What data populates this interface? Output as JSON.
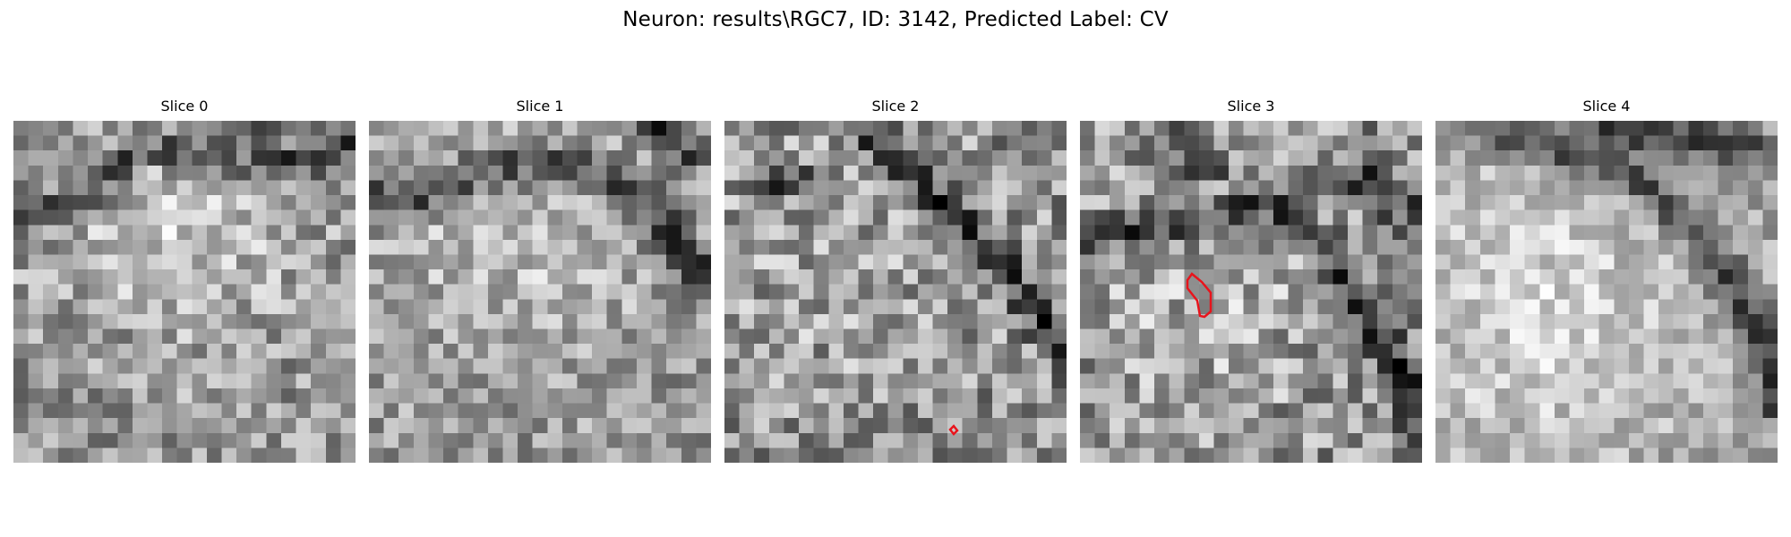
{
  "figure": {
    "suptitle": "Neuron: results\\RGC7, ID: 3142, Predicted Label: CV"
  },
  "colors": {
    "contour": "#e8141c",
    "background": "#ffffff",
    "colormap": "gray"
  },
  "panels": [
    {
      "title": "Slice 0",
      "image": "grayscale EM patch, 23x23 px grid; dark membrane arcs across upper portion over bright cell body",
      "contour": false
    },
    {
      "title": "Slice 1",
      "image": "grayscale EM patch, 23x23 px grid; dark curved membrane band from left to upper-right",
      "contour": false
    },
    {
      "title": "Slice 2",
      "image": "grayscale EM patch, 23x23 px grid; diagonal dark membrane from top center to right; small red contour",
      "contour": true
    },
    {
      "title": "Slice 3",
      "image": "grayscale EM patch, 23x23 px grid; dark membrane band, red polygon contour",
      "contour": true
    },
    {
      "title": "Slice 4",
      "image": "grayscale EM patch, 23x23 px grid; dark membrane arcs from top toward lower right over bright body",
      "contour": false
    }
  ]
}
